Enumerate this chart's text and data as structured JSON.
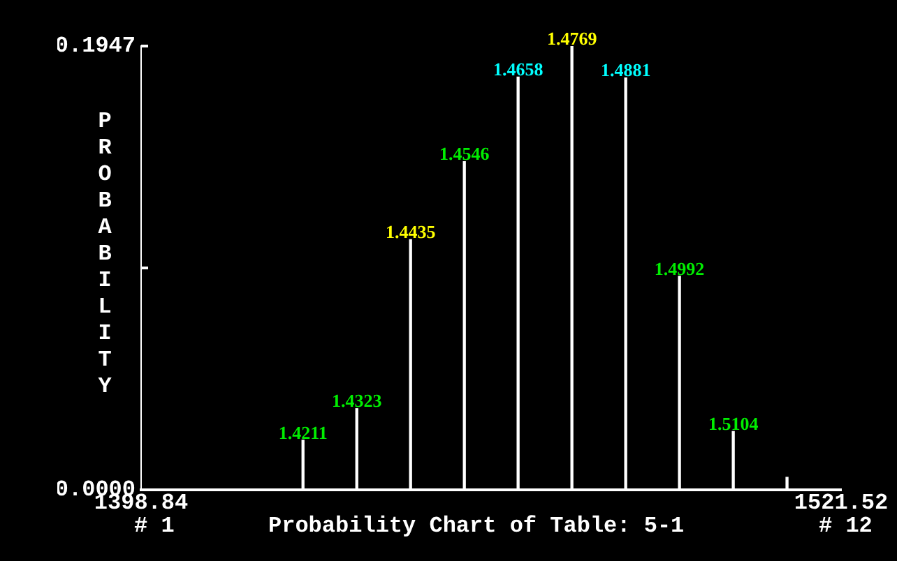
{
  "chart_data": {
    "type": "bar",
    "title": "Probability Chart of Table: 5-1",
    "ylabel": "PROBABILITY",
    "x": [
      1427.21,
      1436.64,
      1446.06,
      1455.49,
      1464.91,
      1474.34,
      1483.77,
      1493.19,
      1502.62,
      1512.04
    ],
    "series": [
      {
        "color": "#ffffff",
        "values": [
          0.0218,
          0.0356,
          0.1098,
          0.144,
          0.1811,
          0.1947,
          0.1807,
          0.0937,
          0.0256,
          0.0055
        ]
      }
    ],
    "xlim": [
      1398.84,
      1521.52
    ],
    "xticks": [
      1398.84,
      1521.52
    ],
    "ylim": [
      0,
      0.1947
    ],
    "yticks": [
      {
        "value": 0,
        "label": "0.0000"
      },
      {
        "value": 0.09735,
        "label": null
      },
      {
        "value": 0.1947,
        "label": "0.1947"
      }
    ],
    "grid": false,
    "legend": false,
    "annotations": [
      {
        "text": "1.4211",
        "x": 1427.21,
        "y": 0.0218
      },
      {
        "text": "1.4323",
        "x": 1436.64,
        "y": 0.0356
      },
      {
        "text": "1.4435",
        "x": 1446.06,
        "y": 0.1098
      },
      {
        "text": "1.4546",
        "x": 1455.49,
        "y": 0.144
      },
      {
        "text": "1.4658",
        "x": 1464.91,
        "y": 0.1811
      },
      {
        "text": "1.4769",
        "x": 1474.34,
        "y": 0.1947
      },
      {
        "text": "1.4881",
        "x": 1483.77,
        "y": 0.1807
      },
      {
        "text": "1.4992",
        "x": 1493.19,
        "y": 0.0937
      },
      {
        "text": "1.5104",
        "x": 1502.62,
        "y": 0.0256
      },
      "# 1",
      "# 12"
    ]
  }
}
